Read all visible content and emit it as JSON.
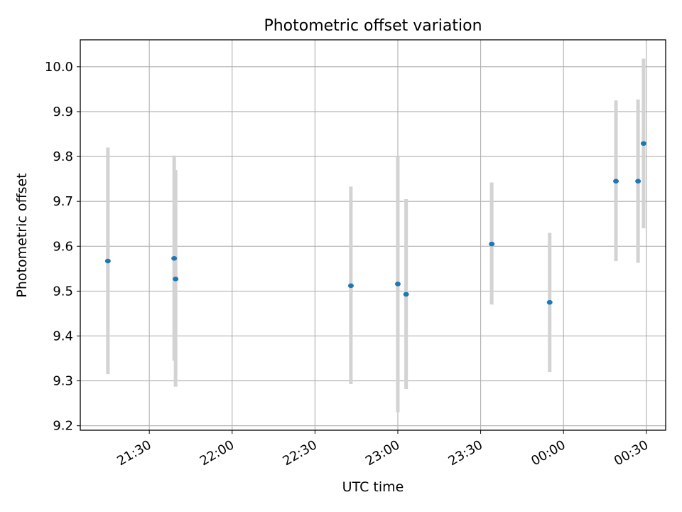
{
  "chart_data": {
    "type": "scatter",
    "title": "Photometric offset variation",
    "xlabel": "UTC time",
    "ylabel": "Photometric offset",
    "grid": true,
    "xlim": [
      "21:05",
      "00:37"
    ],
    "ylim": [
      9.19,
      10.06
    ],
    "xticks": [
      "21:30",
      "22:00",
      "22:30",
      "23:00",
      "23:30",
      "00:00",
      "00:30"
    ],
    "yticks": [
      9.2,
      9.3,
      9.4,
      9.5,
      9.6,
      9.7,
      9.8,
      9.9,
      10.0
    ],
    "colors": {
      "points": "#1f77b4",
      "errorbars": "#d3d3d3"
    },
    "points": [
      {
        "x": "21:15",
        "y": 9.567,
        "ylow": 9.315,
        "yhigh": 9.82
      },
      {
        "x": "21:39",
        "y": 9.573,
        "ylow": 9.345,
        "yhigh": 9.802
      },
      {
        "x": "21:39",
        "y": 9.527,
        "ylow": 9.287,
        "yhigh": 9.77
      },
      {
        "x": "22:43",
        "y": 9.512,
        "ylow": 9.293,
        "yhigh": 9.733
      },
      {
        "x": "23:00",
        "y": 9.516,
        "ylow": 9.23,
        "yhigh": 9.8
      },
      {
        "x": "23:03",
        "y": 9.493,
        "ylow": 9.282,
        "yhigh": 9.705
      },
      {
        "x": "23:34",
        "y": 9.605,
        "ylow": 9.47,
        "yhigh": 9.742
      },
      {
        "x": "23:55",
        "y": 9.475,
        "ylow": 9.32,
        "yhigh": 9.63
      },
      {
        "x": "00:19",
        "y": 9.745,
        "ylow": 9.567,
        "yhigh": 9.925
      },
      {
        "x": "00:27",
        "y": 9.745,
        "ylow": 9.563,
        "yhigh": 9.927
      },
      {
        "x": "00:29",
        "y": 9.829,
        "ylow": 9.64,
        "yhigh": 10.018
      }
    ]
  }
}
